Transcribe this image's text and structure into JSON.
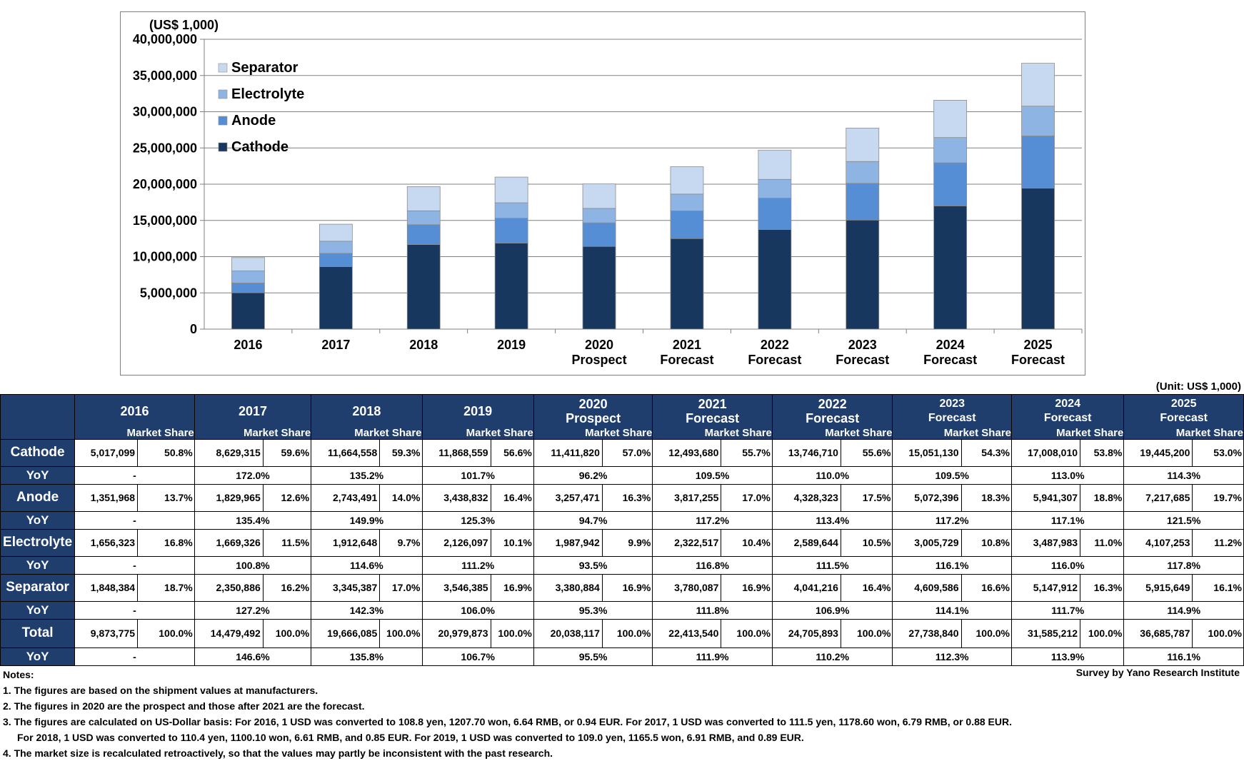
{
  "chart_data": {
    "type": "bar",
    "stacked": true,
    "unit_label": "(US$ 1,000)",
    "categories": [
      [
        "2016"
      ],
      [
        "2017"
      ],
      [
        "2018"
      ],
      [
        "2019"
      ],
      [
        "2020",
        "Prospect"
      ],
      [
        "2021",
        "Forecast"
      ],
      [
        "2022",
        "Forecast"
      ],
      [
        "2023",
        "Forecast"
      ],
      [
        "2024",
        "Forecast"
      ],
      [
        "2025",
        "Forecast"
      ]
    ],
    "ylim": [
      0,
      40000000
    ],
    "yticks": [
      "0",
      "5,000,000",
      "10,000,000",
      "15,000,000",
      "20,000,000",
      "25,000,000",
      "30,000,000",
      "35,000,000",
      "40,000,000"
    ],
    "ytick_values": [
      0,
      5000000,
      10000000,
      15000000,
      20000000,
      25000000,
      30000000,
      35000000,
      40000000
    ],
    "legend_position": "top-left",
    "series": [
      {
        "name": "Cathode",
        "color": "#17375e",
        "values": [
          5017099,
          8629315,
          11664558,
          11868559,
          11411820,
          12493680,
          13746710,
          15051130,
          17008010,
          19445200
        ]
      },
      {
        "name": "Anode",
        "color": "#558ed5",
        "values": [
          1351968,
          1829965,
          2743491,
          3438832,
          3257471,
          3817255,
          4328323,
          5072396,
          5941307,
          7217685
        ]
      },
      {
        "name": "Electrolyte",
        "color": "#8eb4e3",
        "values": [
          1656323,
          1669326,
          1912648,
          2126097,
          1987942,
          2322517,
          2589644,
          3005729,
          3487983,
          4107253
        ]
      },
      {
        "name": "Separator",
        "color": "#c6d9f1",
        "values": [
          1848384,
          2350886,
          3345387,
          3546385,
          3380884,
          3780087,
          4041216,
          4609586,
          5147912,
          5915649
        ]
      }
    ]
  },
  "table": {
    "unit_note": "(Unit: US$ 1,000)",
    "market_share_label": "Market Share",
    "yoy_label": "YoY",
    "years": [
      {
        "line1": "2016",
        "line2": ""
      },
      {
        "line1": "2017",
        "line2": ""
      },
      {
        "line1": "2018",
        "line2": ""
      },
      {
        "line1": "2019",
        "line2": ""
      },
      {
        "line1": "2020",
        "line2": "Prospect"
      },
      {
        "line1": "2021",
        "line2": "Forecast"
      },
      {
        "line1": "2022",
        "line2": "Forecast"
      },
      {
        "line1": "2023",
        "line2": "Forecast"
      },
      {
        "line1": "2024",
        "line2": "Forecast"
      },
      {
        "line1": "2025",
        "line2": "Forecast"
      }
    ],
    "rows": [
      {
        "label": "Cathode",
        "values": [
          "5,017,099",
          "8,629,315",
          "11,664,558",
          "11,868,559",
          "11,411,820",
          "12,493,680",
          "13,746,710",
          "15,051,130",
          "17,008,010",
          "19,445,200"
        ],
        "shares": [
          "50.8%",
          "59.6%",
          "59.3%",
          "56.6%",
          "57.0%",
          "55.7%",
          "55.6%",
          "54.3%",
          "53.8%",
          "53.0%"
        ],
        "yoy": [
          "-",
          "172.0%",
          "135.2%",
          "101.7%",
          "96.2%",
          "109.5%",
          "110.0%",
          "109.5%",
          "113.0%",
          "114.3%"
        ]
      },
      {
        "label": "Anode",
        "values": [
          "1,351,968",
          "1,829,965",
          "2,743,491",
          "3,438,832",
          "3,257,471",
          "3,817,255",
          "4,328,323",
          "5,072,396",
          "5,941,307",
          "7,217,685"
        ],
        "shares": [
          "13.7%",
          "12.6%",
          "14.0%",
          "16.4%",
          "16.3%",
          "17.0%",
          "17.5%",
          "18.3%",
          "18.8%",
          "19.7%"
        ],
        "yoy": [
          "-",
          "135.4%",
          "149.9%",
          "125.3%",
          "94.7%",
          "117.2%",
          "113.4%",
          "117.2%",
          "117.1%",
          "121.5%"
        ]
      },
      {
        "label": "Electrolyte",
        "values": [
          "1,656,323",
          "1,669,326",
          "1,912,648",
          "2,126,097",
          "1,987,942",
          "2,322,517",
          "2,589,644",
          "3,005,729",
          "3,487,983",
          "4,107,253"
        ],
        "shares": [
          "16.8%",
          "11.5%",
          "9.7%",
          "10.1%",
          "9.9%",
          "10.4%",
          "10.5%",
          "10.8%",
          "11.0%",
          "11.2%"
        ],
        "yoy": [
          "-",
          "100.8%",
          "114.6%",
          "111.2%",
          "93.5%",
          "116.8%",
          "111.5%",
          "116.1%",
          "116.0%",
          "117.8%"
        ]
      },
      {
        "label": "Separator",
        "values": [
          "1,848,384",
          "2,350,886",
          "3,345,387",
          "3,546,385",
          "3,380,884",
          "3,780,087",
          "4,041,216",
          "4,609,586",
          "5,147,912",
          "5,915,649"
        ],
        "shares": [
          "18.7%",
          "16.2%",
          "17.0%",
          "16.9%",
          "16.9%",
          "16.9%",
          "16.4%",
          "16.6%",
          "16.3%",
          "16.1%"
        ],
        "yoy": [
          "-",
          "127.2%",
          "142.3%",
          "106.0%",
          "95.3%",
          "111.8%",
          "106.9%",
          "114.1%",
          "111.7%",
          "114.9%"
        ]
      },
      {
        "label": "Total",
        "values": [
          "9,873,775",
          "14,479,492",
          "19,666,085",
          "20,979,873",
          "20,038,117",
          "22,413,540",
          "24,705,893",
          "27,738,840",
          "31,585,212",
          "36,685,787"
        ],
        "shares": [
          "100.0%",
          "100.0%",
          "100.0%",
          "100.0%",
          "100.0%",
          "100.0%",
          "100.0%",
          "100.0%",
          "100.0%",
          "100.0%"
        ],
        "yoy": [
          "-",
          "146.6%",
          "135.8%",
          "106.7%",
          "95.5%",
          "111.9%",
          "110.2%",
          "112.3%",
          "113.9%",
          "116.1%"
        ]
      }
    ]
  },
  "notes": {
    "heading": "Notes:",
    "lines": [
      "1. The figures are based on the shipment values at manufacturers.",
      "2. The figures in 2020 are the prospect and those after 2021 are the forecast.",
      "3. The figures are calculated on US-Dollar basis: For 2016, 1 USD was converted to 108.8 yen, 1207.70 won, 6.64 RMB, or 0.94 EUR. For 2017, 1 USD was converted to 111.5 yen, 1178.60 won, 6.79 RMB, or 0.88 EUR.",
      "For 2018, 1 USD was converted to 110.4 yen, 1100.10 won, 6.61 RMB, and 0.85 EUR. For 2019, 1 USD was converted to 109.0 yen, 1165.5 won, 6.91 RMB, and 0.89 EUR.",
      "4. The market size is recalculated retroactively, so that the values may partly be inconsistent with the past research."
    ],
    "source": "Survey by Yano Research Institute"
  }
}
